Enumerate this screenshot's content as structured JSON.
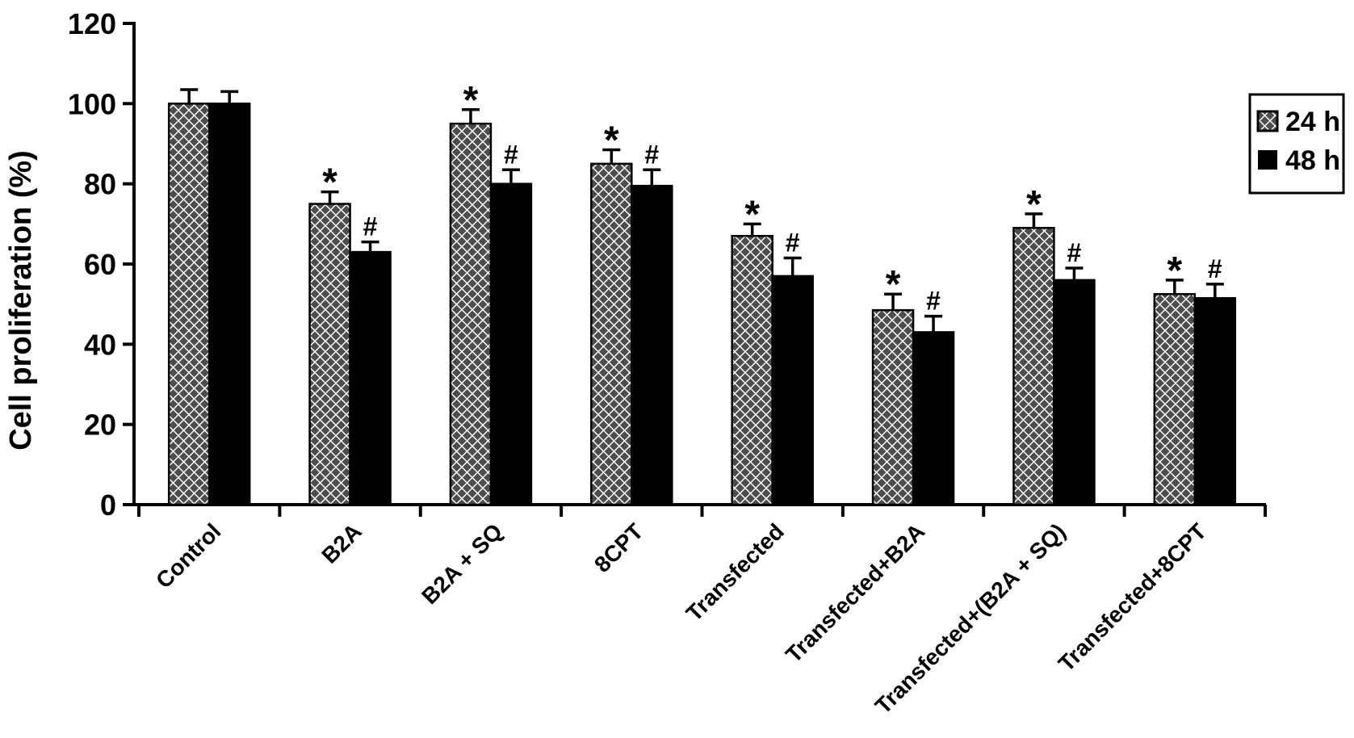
{
  "figure": {
    "background": "#ffffff"
  },
  "chart_data": {
    "type": "bar",
    "title": "",
    "xlabel": "",
    "ylabel": "Cell proliferation (%)",
    "ylim": [
      0,
      120
    ],
    "yticks": [
      0,
      20,
      40,
      60,
      80,
      100,
      120
    ],
    "grid": false,
    "legend_position": "upper-right",
    "categories": [
      "Control",
      "B2A",
      "B2A + SQ",
      "8CPT",
      "Transfected",
      "Transfected+B2A",
      "Transfected+(B2A + SQ)",
      "Transfected+8CPT"
    ],
    "series": [
      {
        "name": "24 h",
        "pattern": "checkered-diamond",
        "values": [
          100,
          75,
          95,
          85,
          67,
          48.5,
          69,
          52.5
        ],
        "errors_plus": [
          3.5,
          3,
          3.5,
          3.5,
          3,
          4,
          3.5,
          3.5
        ],
        "annotations": [
          "",
          "*",
          "*",
          "*",
          "*",
          "*",
          "*",
          "*"
        ]
      },
      {
        "name": "48 h",
        "pattern": "solid-black",
        "values": [
          100,
          63,
          80,
          79.5,
          57,
          43,
          56,
          51.5
        ],
        "errors_plus": [
          3,
          2.5,
          3.5,
          4,
          4.5,
          4,
          3,
          3.5
        ],
        "annotations": [
          "",
          "#",
          "#",
          "#",
          "#",
          "#",
          "#",
          "#"
        ]
      }
    ],
    "colors": {
      "pattern_diamond": "#4d4d4d",
      "bar_solid": "#000000",
      "axis": "#000000",
      "background": "#ffffff"
    }
  }
}
